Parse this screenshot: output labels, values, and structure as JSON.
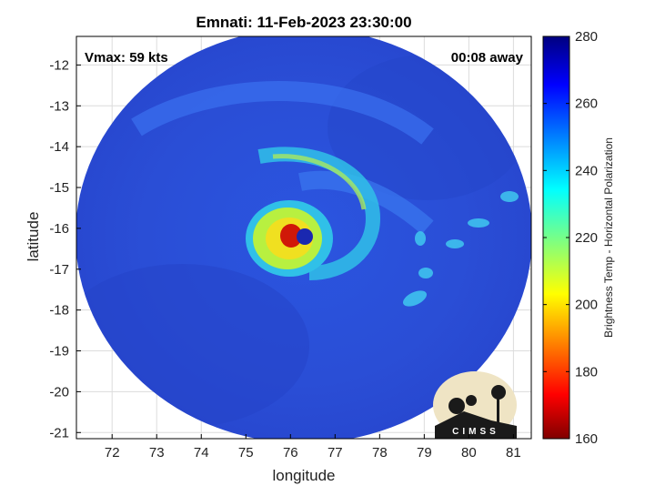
{
  "chart_data": {
    "type": "heatmap",
    "title": "Emnati: 11-Feb-2023 23:30:00",
    "xlabel": "longitude",
    "ylabel": "latitude",
    "xlim": [
      71.2,
      81.4
    ],
    "ylim": [
      -21.15,
      -11.3
    ],
    "xticks": [
      72,
      73,
      74,
      75,
      76,
      77,
      78,
      79,
      80,
      81
    ],
    "yticks": [
      -12,
      -13,
      -14,
      -15,
      -16,
      -17,
      -18,
      -19,
      -20,
      -21
    ],
    "grid": true,
    "annotations": {
      "left": "Vmax: 59 kts",
      "right": "00:08 away"
    },
    "storm_center": {
      "lon": 76.3,
      "lat": -16.05
    },
    "colorbar": {
      "label": "Brightness Temp - Horizontal Polarization",
      "range": [
        160,
        280
      ],
      "ticks": [
        280,
        260,
        240,
        220,
        200,
        180,
        160
      ],
      "colormap": "jet"
    },
    "logo_text": "CIMSS"
  },
  "colors": {
    "background": "#2a4fd8",
    "eye": "#d01808",
    "eyewall": "#e8e020",
    "rainband": "#30c0e8"
  }
}
